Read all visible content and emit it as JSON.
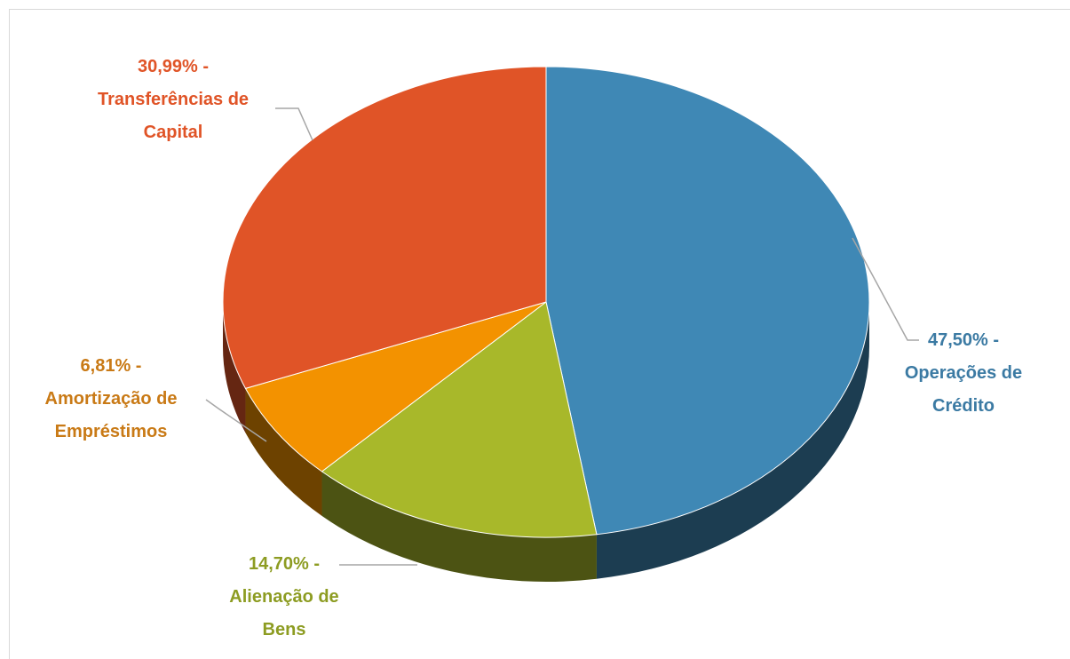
{
  "chart_data": {
    "type": "pie",
    "categories": [
      "Operações de Crédito",
      "Alienação de Bens",
      "Amortização de Empréstimos",
      "Transferências de Capital"
    ],
    "values": [
      47.5,
      14.7,
      6.81,
      30.99
    ],
    "value_labels": [
      "47,50% -",
      "14,70% -",
      "6,81% -",
      "30,99% -"
    ],
    "colors": [
      "#3f88b5",
      "#a8b82a",
      "#f39200",
      "#e05427"
    ],
    "label_colors": [
      "#3b7aa3",
      "#8d9c22",
      "#c97a16",
      "#e05427"
    ]
  }
}
